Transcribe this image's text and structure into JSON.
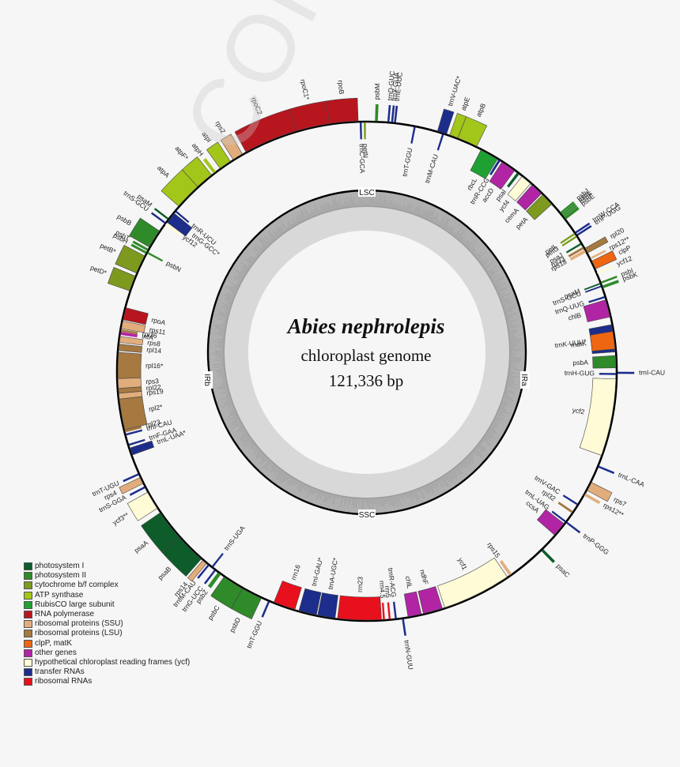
{
  "title": {
    "species": "Abies nephrolepis",
    "subtitle": "chloroplast genome",
    "length": "121,336 bp"
  },
  "watermark": "CORRECTED PROOF",
  "regions": {
    "top": "LSC",
    "bottom": "SSC",
    "left": "IRb",
    "right": "IRa"
  },
  "legend": [
    {
      "label": "photosystem I",
      "color": "#0d5c2a"
    },
    {
      "label": "photosystem II",
      "color": "#2f8a2a"
    },
    {
      "label": "cytochrome b/f complex",
      "color": "#7d9a1f"
    },
    {
      "label": "ATP synthase",
      "color": "#a3c61a"
    },
    {
      "label": "RubisCO large subunit",
      "color": "#1fa033"
    },
    {
      "label": "RNA polymerase",
      "color": "#b8161f"
    },
    {
      "label": "ribosomal proteins (SSU)",
      "color": "#e2ad7c"
    },
    {
      "label": "ribosomal proteins (LSU)",
      "color": "#a57940"
    },
    {
      "label": "clpP, matK",
      "color": "#ef6612"
    },
    {
      "label": "other genes",
      "color": "#b125a5"
    },
    {
      "label": "hypothetical chloroplast reading frames (ycf)",
      "color": "#fffbd6"
    },
    {
      "label": "transfer RNAs",
      "color": "#1c2d8b"
    },
    {
      "label": "ribosomal RNAs",
      "color": "#e8101c"
    }
  ],
  "chart_data": {
    "type": "circular-genome-map",
    "title": "Abies nephrolepis chloroplast genome",
    "genome_length_bp": 121336,
    "regions": [
      "LSC",
      "IRa",
      "SSC",
      "IRb"
    ],
    "genes": [
      {
        "name": "psbM",
        "start": 2,
        "end": 2.6,
        "strand": "out",
        "cat": "photosystem II"
      },
      {
        "name": "trnD-GUC",
        "start": 5.0,
        "end": 5.4,
        "strand": "out",
        "cat": "transfer RNAs"
      },
      {
        "name": "trnY-GUA",
        "start": 5.9,
        "end": 6.3,
        "strand": "out",
        "cat": "transfer RNAs"
      },
      {
        "name": "trnE-UUC",
        "start": 6.6,
        "end": 7.0,
        "strand": "out",
        "cat": "transfer RNAs"
      },
      {
        "name": "trnT-GGU",
        "start": 11.5,
        "end": 11.9,
        "strand": "in",
        "cat": "transfer RNAs"
      },
      {
        "name": "trnV-UAC*",
        "start": 17.3,
        "end": 19.6,
        "strand": "out",
        "cat": "transfer RNAs"
      },
      {
        "name": "trnM-CAU",
        "start": 18.6,
        "end": 19.0,
        "strand": "in",
        "cat": "transfer RNAs"
      },
      {
        "name": "atpE",
        "start": 20.4,
        "end": 22.5,
        "strand": "out",
        "cat": "ATP synthase"
      },
      {
        "name": "atpB",
        "start": 22.5,
        "end": 27.5,
        "strand": "out",
        "cat": "ATP synthase"
      },
      {
        "name": "rbcL",
        "start": 28.8,
        "end": 33.4,
        "strand": "in",
        "cat": "RubisCO large subunit"
      },
      {
        "name": "trnR-CCG",
        "start": 33.7,
        "end": 34.2,
        "strand": "in",
        "cat": "transfer RNAs"
      },
      {
        "name": "accD",
        "start": 34.7,
        "end": 38.4,
        "strand": "in",
        "cat": "other genes"
      },
      {
        "name": "psaI",
        "start": 39.2,
        "end": 39.8,
        "strand": "in",
        "cat": "photosystem I"
      },
      {
        "name": "ycf4",
        "start": 40.7,
        "end": 43.4,
        "strand": "in",
        "cat": "hypothetical chloroplast reading frames (ycf)"
      },
      {
        "name": "cemA",
        "start": 43.9,
        "end": 47.0,
        "strand": "in",
        "cat": "other genes"
      },
      {
        "name": "petA",
        "start": 47.4,
        "end": 50.6,
        "strand": "in",
        "cat": "cytochrome b/f complex"
      },
      {
        "name": "psbJ",
        "start": 53.4,
        "end": 53.8,
        "strand": "out",
        "cat": "photosystem II"
      },
      {
        "name": "psbL",
        "start": 53.9,
        "end": 54.3,
        "strand": "out",
        "cat": "photosystem II"
      },
      {
        "name": "psbF",
        "start": 54.4,
        "end": 54.8,
        "strand": "out",
        "cat": "photosystem II"
      },
      {
        "name": "psbE",
        "start": 54.9,
        "end": 55.6,
        "strand": "out",
        "cat": "photosystem II"
      },
      {
        "name": "trnW-CCA",
        "start": 59.4,
        "end": 59.8,
        "strand": "out",
        "cat": "transfer RNAs"
      },
      {
        "name": "trnP-UGG",
        "start": 60.1,
        "end": 60.5,
        "strand": "out",
        "cat": "transfer RNAs"
      },
      {
        "name": "petL",
        "start": 59.5,
        "end": 59.9,
        "strand": "in",
        "cat": "cytochrome b/f complex"
      },
      {
        "name": "petG",
        "start": 60.3,
        "end": 60.7,
        "strand": "in",
        "cat": "cytochrome b/f complex"
      },
      {
        "name": "psaJ",
        "start": 62.4,
        "end": 62.8,
        "strand": "in",
        "cat": "photosystem I"
      },
      {
        "name": "rpl33",
        "start": 63.5,
        "end": 64.0,
        "strand": "in",
        "cat": "ribosomal proteins (LSU)"
      },
      {
        "name": "rps18",
        "start": 64.3,
        "end": 65.0,
        "strand": "in",
        "cat": "ribosomal proteins (SSU)"
      },
      {
        "name": "rpl20",
        "start": 64.0,
        "end": 65.3,
        "strand": "out",
        "cat": "ribosomal proteins (LSU)"
      },
      {
        "name": "rps12**",
        "start": 66.6,
        "end": 67.0,
        "strand": "out",
        "cat": "ribosomal proteins (SSU)"
      },
      {
        "name": "clpP",
        "start": 67.5,
        "end": 69.6,
        "strand": "out",
        "cat": "clpP, matK"
      },
      {
        "name": "ycf12",
        "start": 70.5,
        "end": 70.9,
        "strand": "out",
        "cat": "hypothetical chloroplast reading frames (ycf)"
      },
      {
        "name": "psbI",
        "start": 73.0,
        "end": 73.4,
        "strand": "out",
        "cat": "photosystem II"
      },
      {
        "name": "psbK",
        "start": 74.0,
        "end": 74.6,
        "strand": "out",
        "cat": "photosystem II"
      },
      {
        "name": "psaM",
        "start": 73.2,
        "end": 73.5,
        "strand": "in",
        "cat": "photosystem I"
      },
      {
        "name": "trnS-GCU",
        "start": 73.9,
        "end": 74.2,
        "strand": "in",
        "cat": "transfer RNAs"
      },
      {
        "name": "trnQ-UUG",
        "start": 76.6,
        "end": 77.0,
        "strand": "in",
        "cat": "transfer RNAs"
      },
      {
        "name": "chlB",
        "start": 77.5,
        "end": 81.8,
        "strand": "in",
        "cat": "other genes"
      },
      {
        "name": "trnK-UUU*",
        "start": 83.7,
        "end": 90.4,
        "strand": "in",
        "cat": "transfer RNAs"
      },
      {
        "name": "matK",
        "start": 85.4,
        "end": 89.7,
        "strand": "in",
        "cat": "clpP, matK"
      },
      {
        "name": "psbA",
        "start": 91.3,
        "end": 94.3,
        "strand": "in",
        "cat": "photosystem II"
      },
      {
        "name": "trnH-GUG",
        "start": 95.6,
        "end": 96.0,
        "strand": "in",
        "cat": "transfer RNAs"
      },
      {
        "name": "trnI-CAU",
        "start": 95.3,
        "end": 95.7,
        "strand": "out",
        "cat": "transfer RNAs"
      },
      {
        "name": "ycf2",
        "start": 97.0,
        "end": 116.0,
        "strand": "in",
        "cat": "hypothetical chloroplast reading frames (ycf)"
      },
      {
        "name": "trnL-CAA",
        "start": 118.6,
        "end": 119.0,
        "strand": "out",
        "cat": "transfer RNAs"
      },
      {
        "name": "rps7",
        "start": 123.0,
        "end": 125.2,
        "strand": "out",
        "cat": "ribosomal proteins (SSU)"
      },
      {
        "name": "rps12**",
        "start": 126.0,
        "end": 126.6,
        "strand": "out",
        "cat": "ribosomal proteins (SSU)"
      },
      {
        "name": "trnV-GAC",
        "start": 129.1,
        "end": 129.5,
        "strand": "in",
        "cat": "transfer RNAs"
      },
      {
        "name": "rpl32",
        "start": 131.3,
        "end": 131.8,
        "strand": "in",
        "cat": "ribosomal proteins (LSU)"
      },
      {
        "name": "trnL-UAG",
        "start": 134.2,
        "end": 134.6,
        "strand": "in",
        "cat": "transfer RNAs"
      },
      {
        "name": "trnP-GGG",
        "start": 134.2,
        "end": 134.6,
        "strand": "out",
        "cat": "transfer RNAs"
      },
      {
        "name": "ccsA",
        "start": 135.0,
        "end": 138.6,
        "strand": "in",
        "cat": "other genes"
      },
      {
        "name": "psaC",
        "start": 143.0,
        "end": 143.6,
        "strand": "out",
        "cat": "photosystem I"
      },
      {
        "name": "rps15",
        "start": 152.7,
        "end": 153.4,
        "strand": "in",
        "cat": "ribosomal proteins (SSU)"
      },
      {
        "name": "ycf1",
        "start": 154.0,
        "end": 171.0,
        "strand": "in",
        "cat": "hypothetical chloroplast reading frames (ycf)"
      },
      {
        "name": "ndhF",
        "start": 171.6,
        "end": 176.4,
        "strand": "in",
        "cat": "other genes"
      },
      {
        "name": "chlL",
        "start": 176.9,
        "end": 180.2,
        "strand": "in",
        "cat": "other genes"
      },
      {
        "name": "trnN-GUU",
        "start": 181.3,
        "end": 181.7,
        "strand": "out",
        "cat": "transfer RNAs"
      },
      {
        "name": "trnR-ACG",
        "start": 183.0,
        "end": 183.4,
        "strand": "in",
        "cat": "transfer RNAs"
      },
      {
        "name": "rrn5",
        "start": 184.5,
        "end": 184.9,
        "strand": "in",
        "cat": "ribosomal RNAs"
      },
      {
        "name": "rrn4.5",
        "start": 185.9,
        "end": 186.3,
        "strand": "in",
        "cat": "ribosomal RNAs"
      },
      {
        "name": "rrn23",
        "start": 186.7,
        "end": 197.4,
        "strand": "in",
        "cat": "ribosomal RNAs"
      },
      {
        "name": "trnA-UGC*",
        "start": 198.0,
        "end": 202.3,
        "strand": "in",
        "cat": "transfer RNAs"
      },
      {
        "name": "trnI-GAU*",
        "start": 202.6,
        "end": 207.0,
        "strand": "in",
        "cat": "transfer RNAs"
      },
      {
        "name": "rrn16",
        "start": 208.0,
        "end": 213.4,
        "strand": "in",
        "cat": "ribosomal RNAs"
      },
      {
        "name": "trnT-GGU",
        "start": 214.4,
        "end": 214.8,
        "strand": "out",
        "cat": "transfer RNAs"
      },
      {
        "name": "psbD",
        "start": 216.6,
        "end": 221.7,
        "strand": "out",
        "cat": "photosystem II"
      },
      {
        "name": "psbC",
        "start": 221.7,
        "end": 227.0,
        "strand": "out",
        "cat": "photosystem II"
      },
      {
        "name": "psbZ",
        "start": 228.0,
        "end": 228.8,
        "strand": "out",
        "cat": "photosystem II"
      },
      {
        "name": "trnG-UCC",
        "start": 229.5,
        "end": 229.9,
        "strand": "out",
        "cat": "transfer RNAs"
      },
      {
        "name": "trnS-UGA",
        "start": 230.5,
        "end": 230.9,
        "strand": "in",
        "cat": "transfer RNAs"
      },
      {
        "name": "trnfM-CAU",
        "start": 231.5,
        "end": 231.9,
        "strand": "out",
        "cat": "transfer RNAs"
      },
      {
        "name": "rps14",
        "start": 232.3,
        "end": 233.5,
        "strand": "out",
        "cat": "ribosomal proteins (SSU)"
      },
      {
        "name": "psaB",
        "start": 234.0,
        "end": 241.5,
        "strand": "out",
        "cat": "photosystem I"
      },
      {
        "name": "psaA",
        "start": 241.5,
        "end": 249.0,
        "strand": "out",
        "cat": "photosystem I"
      },
      {
        "name": "ycf3**",
        "start": 250.3,
        "end": 254.8,
        "strand": "out",
        "cat": "hypothetical chloroplast reading frames (ycf)"
      },
      {
        "name": "trnS-GGA",
        "start": 256.0,
        "end": 256.4,
        "strand": "out",
        "cat": "transfer RNAs"
      },
      {
        "name": "rps4",
        "start": 257.2,
        "end": 258.8,
        "strand": "out",
        "cat": "ribosomal proteins (SSU)"
      },
      {
        "name": "trnT-UGU",
        "start": 259.5,
        "end": 259.9,
        "strand": "out",
        "cat": "transfer RNAs"
      },
      {
        "name": "trnL-UAA*",
        "start": 264.6,
        "end": 266.4,
        "strand": "in",
        "cat": "transfer RNAs"
      },
      {
        "name": "trnF-GAA",
        "start": 267.0,
        "end": 267.4,
        "strand": "in",
        "cat": "transfer RNAs"
      },
      {
        "name": "trnI-CAU",
        "start": 269.6,
        "end": 270.0,
        "strand": "in",
        "cat": "transfer RNAs"
      },
      {
        "name": "rpl23",
        "start": 270.4,
        "end": 271.0,
        "strand": "in",
        "cat": "ribosomal proteins (LSU)"
      },
      {
        "name": "rpl2*",
        "start": 271.0,
        "end": 278.6,
        "strand": "in",
        "cat": "ribosomal proteins (LSU)"
      },
      {
        "name": "rps19",
        "start": 278.6,
        "end": 280.0,
        "strand": "in",
        "cat": "ribosomal proteins (SSU)"
      },
      {
        "name": "rpl22",
        "start": 280.0,
        "end": 281.2,
        "strand": "in",
        "cat": "ribosomal proteins (LSU)"
      },
      {
        "name": "rps3",
        "start": 281.2,
        "end": 283.6,
        "strand": "in",
        "cat": "ribosomal proteins (SSU)"
      },
      {
        "name": "rpl16*",
        "start": 283.6,
        "end": 290.0,
        "strand": "in",
        "cat": "ribosomal proteins (LSU)"
      },
      {
        "name": "rpl14",
        "start": 290.4,
        "end": 292.0,
        "strand": "in",
        "cat": "ribosomal proteins (LSU)"
      },
      {
        "name": "rps8",
        "start": 292.4,
        "end": 293.9,
        "strand": "in",
        "cat": "ribosomal proteins (SSU)"
      },
      {
        "name": "infA",
        "start": 294.3,
        "end": 295.0,
        "strand": "in",
        "cat": "other genes"
      },
      {
        "name": "rpl36",
        "start": 295.1,
        "end": 295.6,
        "strand": "in",
        "cat": "ribosomal proteins (LSU)"
      },
      {
        "name": "rps11",
        "start": 295.8,
        "end": 297.7,
        "strand": "in",
        "cat": "ribosomal proteins (SSU)"
      },
      {
        "name": "rpoA",
        "start": 298.0,
        "end": 301.0,
        "strand": "in",
        "cat": "RNA polymerase"
      },
      {
        "name": "petD*",
        "start": 305.2,
        "end": 309.0,
        "strand": "out",
        "cat": "cytochrome b/f complex"
      },
      {
        "name": "petB*",
        "start": 309.8,
        "end": 314.4,
        "strand": "out",
        "cat": "cytochrome b/f complex"
      },
      {
        "name": "psbH",
        "start": 315.0,
        "end": 315.5,
        "strand": "out",
        "cat": "photosystem II"
      },
      {
        "name": "psbN",
        "start": 315.2,
        "end": 315.6,
        "strand": "in",
        "cat": "photosystem II"
      },
      {
        "name": "psbT",
        "start": 315.8,
        "end": 316.3,
        "strand": "out",
        "cat": "photosystem II"
      },
      {
        "name": "psbB",
        "start": 316.8,
        "end": 321.4,
        "strand": "out",
        "cat": "photosystem II"
      },
      {
        "name": "ycf12",
        "start": 323.4,
        "end": 324.0,
        "strand": "in",
        "cat": "hypothetical chloroplast reading frames (ycf)"
      },
      {
        "name": "trnG-GCC*",
        "start": 324.2,
        "end": 327.0,
        "strand": "in",
        "cat": "transfer RNAs"
      },
      {
        "name": "trnR-UCU",
        "start": 327.4,
        "end": 327.8,
        "strand": "in",
        "cat": "transfer RNAs"
      },
      {
        "name": "trnS-GCU",
        "start": 323.6,
        "end": 324.0,
        "strand": "out",
        "cat": "transfer RNAs"
      },
      {
        "name": "psaM",
        "start": 324.8,
        "end": 325.2,
        "strand": "out",
        "cat": "photosystem I"
      },
      {
        "name": "atpA",
        "start": 329.0,
        "end": 335.6,
        "strand": "out",
        "cat": "ATP synthase"
      },
      {
        "name": "atpF*",
        "start": 335.6,
        "end": 340.0,
        "strand": "out",
        "cat": "ATP synthase"
      },
      {
        "name": "atpH",
        "start": 340.6,
        "end": 341.3,
        "strand": "out",
        "cat": "ATP synthase"
      },
      {
        "name": "atpI",
        "start": 342.6,
        "end": 345.6,
        "strand": "out",
        "cat": "ATP synthase"
      },
      {
        "name": "rps2",
        "start": 346.4,
        "end": 349.0,
        "strand": "out",
        "cat": "ribosomal proteins (SSU)"
      },
      {
        "name": "rpoC2",
        "start": 350.0,
        "end": 363.2,
        "strand": "out",
        "cat": "RNA polymerase"
      },
      {
        "name": "rpoC1*",
        "start": 363.2,
        "end": 371.4,
        "strand": "out",
        "cat": "RNA polymerase"
      },
      {
        "name": "rpoB",
        "start": 371.4,
        "end": 378.4,
        "strand": "out",
        "cat": "RNA polymerase"
      },
      {
        "name": "trnC-GCA",
        "start": 378.8,
        "end": 379.2,
        "strand": "in",
        "cat": "transfer RNAs"
      },
      {
        "name": "petN",
        "start": 379.8,
        "end": 380.2,
        "strand": "in",
        "cat": "cytochrome b/f complex"
      }
    ]
  }
}
